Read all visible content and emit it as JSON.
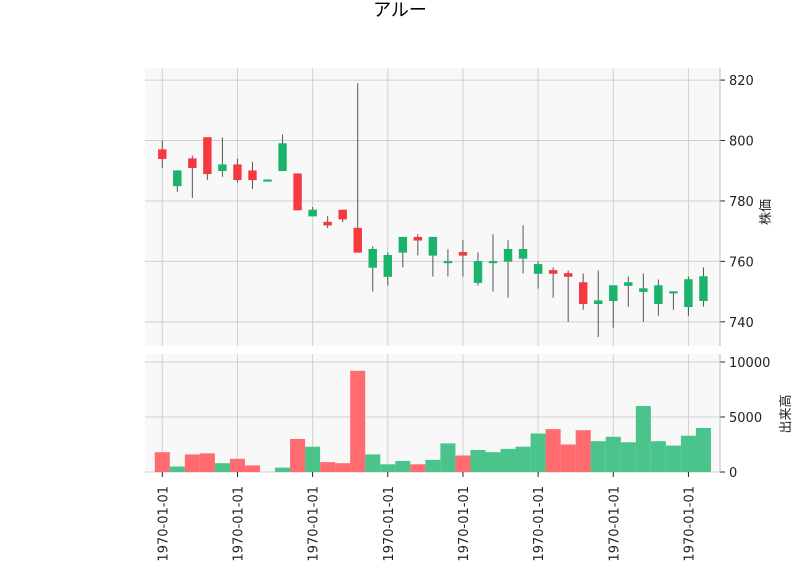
{
  "title": "アルー",
  "colors": {
    "up": "#19b36b",
    "down": "#f5393f",
    "up_volume": "#4ac48a",
    "down_volume": "#ff6b6e",
    "wick": "#555555",
    "grid": "#d0d0d0",
    "panel_bg": "#f8f8f8"
  },
  "chart_data": {
    "type": "candlestick",
    "title": "アルー",
    "price_panel": {
      "ylabel": "株価",
      "ylim": [
        732,
        824
      ],
      "yticks": [
        740,
        760,
        780,
        800,
        820
      ]
    },
    "volume_panel": {
      "ylabel": "出来高",
      "ylim": [
        0,
        10000
      ],
      "yticks": [
        0,
        5000,
        10000
      ]
    },
    "x_tick_labels": [
      "1970-01-01",
      "1970-01-01",
      "1970-01-01",
      "1970-01-01",
      "1970-01-01",
      "1970-01-01",
      "1970-01-01",
      "1970-01-01"
    ],
    "grid": true,
    "candles": [
      {
        "o": 797,
        "h": 800,
        "l": 791,
        "c": 794,
        "v": 1800
      },
      {
        "o": 785,
        "h": 790,
        "l": 783,
        "c": 790,
        "v": 500
      },
      {
        "o": 794,
        "h": 795,
        "l": 781,
        "c": 791,
        "v": 1600
      },
      {
        "o": 801,
        "h": 801,
        "l": 787,
        "c": 789,
        "v": 1700
      },
      {
        "o": 790,
        "h": 801,
        "l": 788,
        "c": 792,
        "v": 800
      },
      {
        "o": 792,
        "h": 794,
        "l": 786,
        "c": 787,
        "v": 1200
      },
      {
        "o": 790,
        "h": 793,
        "l": 784,
        "c": 787,
        "v": 600
      },
      {
        "o": 787,
        "h": 787,
        "l": 787,
        "c": 787,
        "v": 0
      },
      {
        "o": 790,
        "h": 802,
        "l": 790,
        "c": 799,
        "v": 400
      },
      {
        "o": 789,
        "h": 789,
        "l": 777,
        "c": 777,
        "v": 3000
      },
      {
        "o": 775,
        "h": 778,
        "l": 775,
        "c": 777,
        "v": 2300
      },
      {
        "o": 773,
        "h": 775,
        "l": 771,
        "c": 772,
        "v": 900
      },
      {
        "o": 777,
        "h": 777,
        "l": 773,
        "c": 774,
        "v": 800
      },
      {
        "o": 771,
        "h": 819,
        "l": 763,
        "c": 763,
        "v": 9200
      },
      {
        "o": 758,
        "h": 765,
        "l": 750,
        "c": 764,
        "v": 1600
      },
      {
        "o": 755,
        "h": 763,
        "l": 752,
        "c": 762,
        "v": 700
      },
      {
        "o": 763,
        "h": 768,
        "l": 758,
        "c": 768,
        "v": 1000
      },
      {
        "o": 768,
        "h": 769,
        "l": 762,
        "c": 767,
        "v": 700
      },
      {
        "o": 762,
        "h": 768,
        "l": 755,
        "c": 768,
        "v": 1100
      },
      {
        "o": 760,
        "h": 764,
        "l": 755,
        "c": 760,
        "v": 2600
      },
      {
        "o": 763,
        "h": 767,
        "l": 755,
        "c": 762,
        "v": 1500
      },
      {
        "o": 753,
        "h": 763,
        "l": 752,
        "c": 760,
        "v": 2000
      },
      {
        "o": 760,
        "h": 769,
        "l": 750,
        "c": 760,
        "v": 1800
      },
      {
        "o": 760,
        "h": 767,
        "l": 748,
        "c": 764,
        "v": 2100
      },
      {
        "o": 761,
        "h": 772,
        "l": 756,
        "c": 764,
        "v": 2300
      },
      {
        "o": 756,
        "h": 760,
        "l": 751,
        "c": 759,
        "v": 3500
      },
      {
        "o": 757,
        "h": 758,
        "l": 748,
        "c": 756,
        "v": 3900
      },
      {
        "o": 756,
        "h": 757,
        "l": 740,
        "c": 755,
        "v": 2500
      },
      {
        "o": 753,
        "h": 756,
        "l": 744,
        "c": 746,
        "v": 3800
      },
      {
        "o": 746,
        "h": 757,
        "l": 735,
        "c": 747,
        "v": 2800
      },
      {
        "o": 747,
        "h": 752,
        "l": 738,
        "c": 752,
        "v": 3200
      },
      {
        "o": 752,
        "h": 755,
        "l": 745,
        "c": 753,
        "v": 2700
      },
      {
        "o": 750,
        "h": 756,
        "l": 740,
        "c": 751,
        "v": 6000
      },
      {
        "o": 746,
        "h": 754,
        "l": 742,
        "c": 752,
        "v": 2800
      },
      {
        "o": 750,
        "h": 750,
        "l": 744,
        "c": 750,
        "v": 2400
      },
      {
        "o": 745,
        "h": 755,
        "l": 742,
        "c": 754,
        "v": 3300
      },
      {
        "o": 747,
        "h": 758,
        "l": 745,
        "c": 755,
        "v": 4000
      }
    ]
  }
}
